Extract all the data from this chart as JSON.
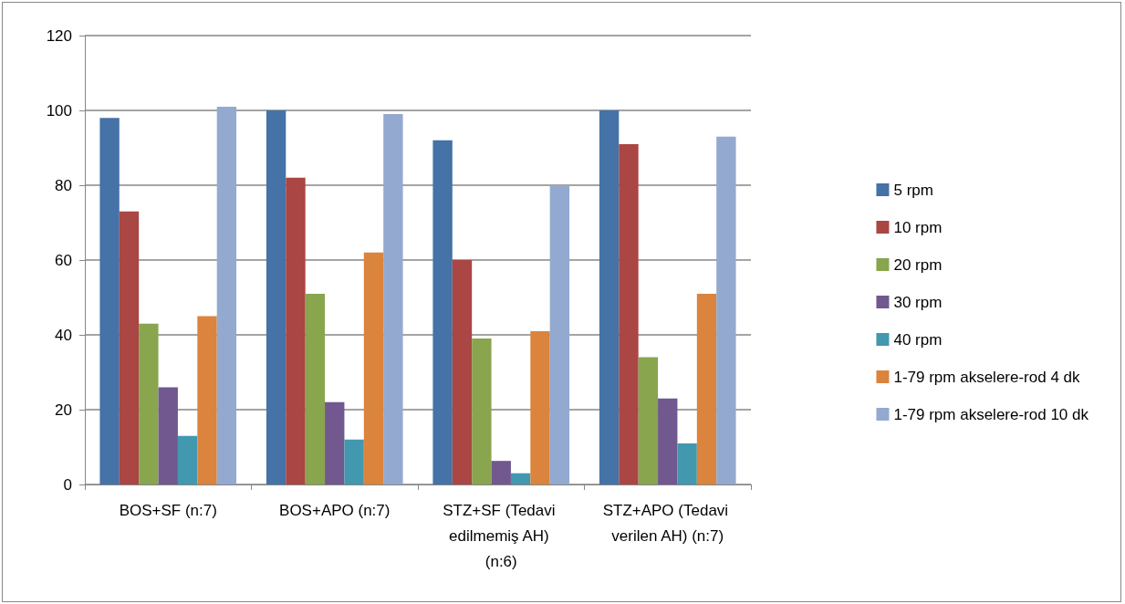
{
  "chart_data": {
    "type": "bar",
    "categories": [
      "BOS+SF (n:7)",
      "BOS+APO (n:7)",
      "STZ+SF (Tedavi edilmemiş AH) (n:6)",
      "STZ+APO (Tedavi verilen AH) (n:7)"
    ],
    "series": [
      {
        "name": "5 rpm",
        "color": "#4572a7",
        "values": [
          98,
          100,
          92,
          100
        ]
      },
      {
        "name": "10 rpm",
        "color": "#aa4643",
        "values": [
          73,
          82,
          60,
          91
        ]
      },
      {
        "name": "20 rpm",
        "color": "#89a54e",
        "values": [
          43,
          51,
          39,
          34
        ]
      },
      {
        "name": "30 rpm",
        "color": "#71588f",
        "values": [
          26,
          22,
          6.3,
          23
        ]
      },
      {
        "name": "40 rpm",
        "color": "#4198af",
        "values": [
          13,
          12,
          3,
          11
        ]
      },
      {
        "name": "1-79 rpm akselere-rod 4 dk",
        "color": "#db843d",
        "values": [
          45,
          62,
          41,
          51
        ]
      },
      {
        "name": "1-79 rpm akselere-rod 10 dk",
        "color": "#93a9cf",
        "values": [
          101,
          99,
          80,
          93
        ]
      }
    ],
    "ylim": [
      0,
      120
    ],
    "yticks": [
      0,
      20,
      40,
      60,
      80,
      100,
      120
    ],
    "grid": "y",
    "legend": "right"
  }
}
